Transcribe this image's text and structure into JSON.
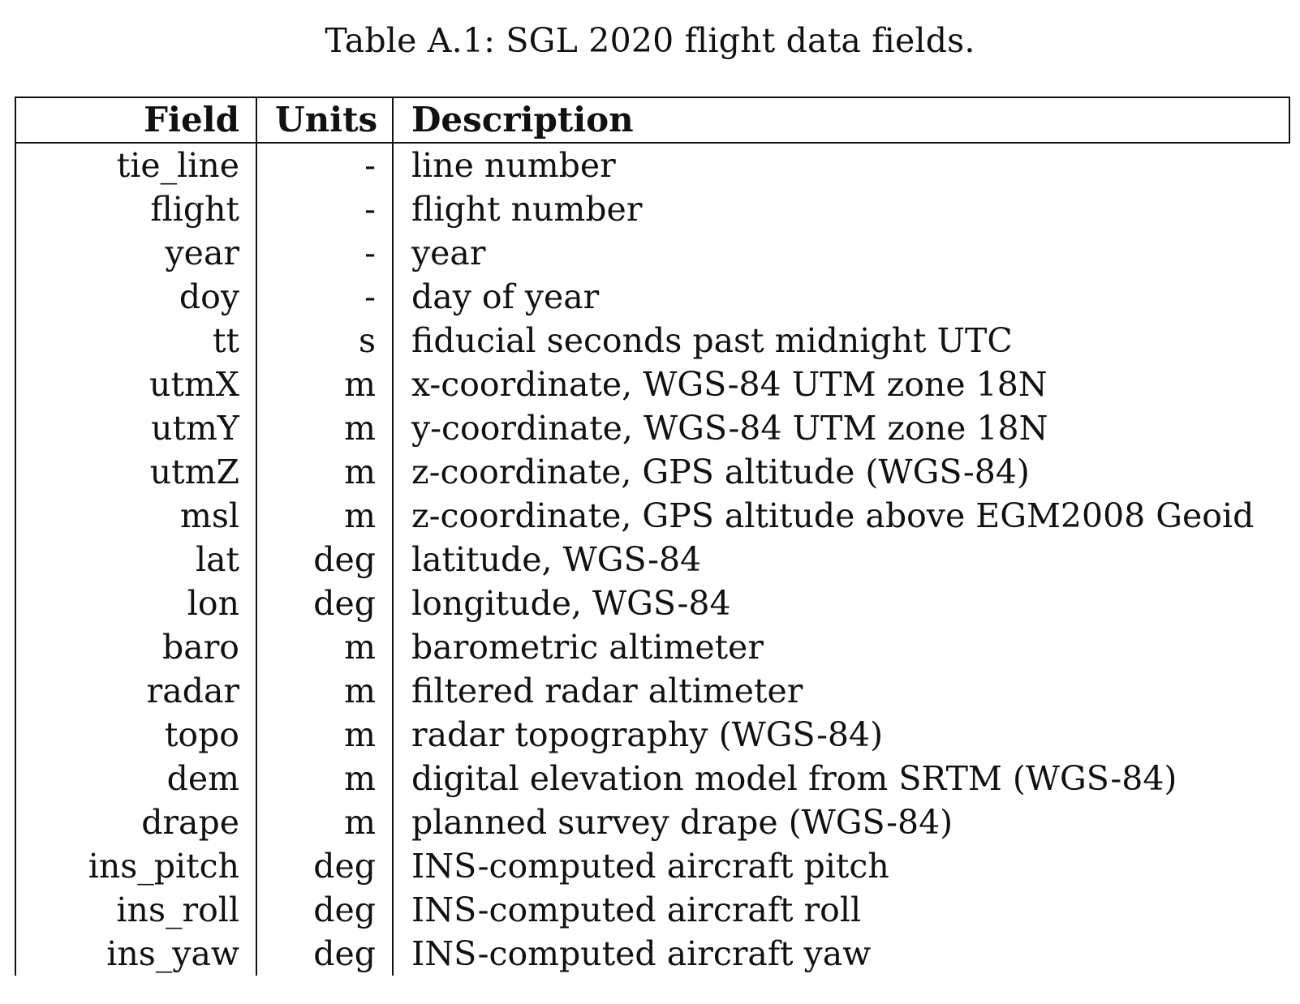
{
  "caption": "Table A.1: SGL 2020 flight data fields.",
  "table": {
    "headers": {
      "field": "Field",
      "units": "Units",
      "description": "Description"
    },
    "rows": [
      {
        "field": "tie_line",
        "units": "-",
        "description": "line number"
      },
      {
        "field": "flight",
        "units": "-",
        "description": "flight number"
      },
      {
        "field": "year",
        "units": "-",
        "description": "year"
      },
      {
        "field": "doy",
        "units": "-",
        "description": "day of year"
      },
      {
        "field": "tt",
        "units": "s",
        "description": "fiducial seconds past midnight UTC"
      },
      {
        "field": "utmX",
        "units": "m",
        "description": "x-coordinate, WGS-84 UTM zone 18N"
      },
      {
        "field": "utmY",
        "units": "m",
        "description": "y-coordinate, WGS-84 UTM zone 18N"
      },
      {
        "field": "utmZ",
        "units": "m",
        "description": "z-coordinate, GPS altitude (WGS-84)"
      },
      {
        "field": "msl",
        "units": "m",
        "description": "z-coordinate, GPS altitude above EGM2008 Geoid"
      },
      {
        "field": "lat",
        "units": "deg",
        "description": "latitude, WGS-84"
      },
      {
        "field": "lon",
        "units": "deg",
        "description": "longitude, WGS-84"
      },
      {
        "field": "baro",
        "units": "m",
        "description": "barometric altimeter"
      },
      {
        "field": "radar",
        "units": "m",
        "description": "filtered radar altimeter"
      },
      {
        "field": "topo",
        "units": "m",
        "description": "radar topography (WGS-84)"
      },
      {
        "field": "dem",
        "units": "m",
        "description": "digital elevation model from SRTM (WGS-84)"
      },
      {
        "field": "drape",
        "units": "m",
        "description": "planned survey drape (WGS-84)"
      },
      {
        "field": "ins_pitch",
        "units": "deg",
        "description": "INS-computed aircraft pitch"
      },
      {
        "field": "ins_roll",
        "units": "deg",
        "description": "INS-computed aircraft roll"
      },
      {
        "field": "ins_yaw",
        "units": "deg",
        "description": "INS-computed aircraft yaw"
      }
    ]
  }
}
